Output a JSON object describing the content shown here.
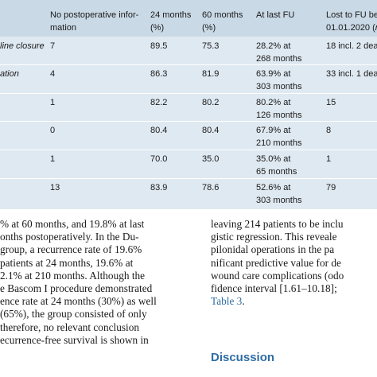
{
  "table": {
    "headers": {
      "no_postop": [
        "No postoperative infor-",
        "mation"
      ],
      "m24": [
        "24 months",
        "(%)"
      ],
      "m60": [
        "60 months",
        "(%)"
      ],
      "lastfu": [
        "At last FU"
      ],
      "lost": [
        "Lost to FU bef",
        "01.01.2020 ("
      ]
    },
    "lost_header_italic": "n",
    "rows": [
      {
        "label": "line closure",
        "no_postop": "7",
        "m24": "89.5",
        "m60": "75.3",
        "lastfu": [
          "28.2% at",
          "268 months"
        ],
        "lost": "18 incl. 2 dea"
      },
      {
        "label": "ation",
        "no_postop": "4",
        "m24": "86.3",
        "m60": "81.9",
        "lastfu": [
          "63.9% at",
          "303 months"
        ],
        "lost": "33 incl. 1 dea"
      },
      {
        "label": "",
        "no_postop": "1",
        "m24": "82.2",
        "m60": "80.2",
        "lastfu": [
          "80.2% at",
          "126 months"
        ],
        "lost": "15"
      },
      {
        "label": "",
        "no_postop": "0",
        "m24": "80.4",
        "m60": "80.4",
        "lastfu": [
          "67.9% at",
          "210 months"
        ],
        "lost": "8"
      },
      {
        "label": "",
        "no_postop": "1",
        "m24": "70.0",
        "m60": "35.0",
        "lastfu": [
          "35.0% at",
          "65 months"
        ],
        "lost": "1"
      },
      {
        "label": "",
        "no_postop": "13",
        "m24": "83.9",
        "m60": "78.6",
        "lastfu": [
          "52.6% at",
          "303 months"
        ],
        "lost": "79"
      }
    ]
  },
  "left_column": [
    "% at 60 months, and 19.8% at last",
    "onths postoperatively.  In the Du-",
    "group, a recurrence rate of 19.6%",
    "patients at 24 months, 19.6% at",
    "2.1% at 210 months. Although the",
    "e Bascom I procedure demonstrated",
    "ence rate at 24 months (30%) as well",
    "(65%), the group consisted of only",
    "therefore, no relevant conclusion",
    "ecurrence-free survival is shown in"
  ],
  "right_column": {
    "lines": [
      "leaving 214 patients to be inclu",
      "gistic regression.  This reveale",
      "pilonidal operations in the pa",
      "nificant predictive value for de",
      "wound care complications (odo",
      "fidence interval [1.61–10.18];"
    ],
    "last_line_link": "Table 3",
    "last_line_suffix": ".",
    "heading": "Discussion"
  }
}
